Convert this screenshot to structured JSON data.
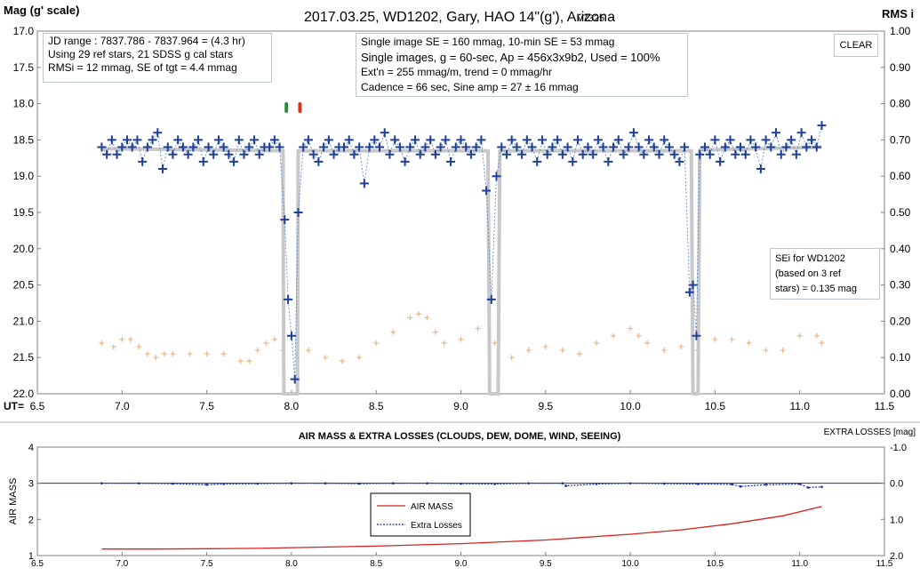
{
  "chart_data": [
    {
      "type": "scatter",
      "title": "2017.03.25, WD1202, Gary, HAO 14\"(g'), Arizona",
      "version": "v7325",
      "ylabel": "Mag (g' scale)",
      "y2label": "RMS i",
      "xlabel": "UT=",
      "xlim": [
        6.5,
        11.5
      ],
      "ylim": [
        17.0,
        22.0
      ],
      "y_inverted": true,
      "y2lim": [
        0.0,
        1.0
      ],
      "x_ticks": [
        "6.5",
        "7.0",
        "7.5",
        "8.0",
        "8.5",
        "9.0",
        "9.5",
        "10.0",
        "10.5",
        "11.0",
        "11.5"
      ],
      "y_ticks": [
        "17.0",
        "17.5",
        "18.0",
        "18.5",
        "19.0",
        "19.5",
        "20.0",
        "20.5",
        "21.0",
        "21.5",
        "22.0"
      ],
      "y2_ticks": [
        "1.00",
        "0.90",
        "0.80",
        "0.70",
        "0.60",
        "0.50",
        "0.40",
        "0.30",
        "0.20",
        "0.10",
        "0.00"
      ],
      "grid": false,
      "info_left": [
        "JD range : 7837.786 - 7837.964 = (4.3 hr)",
        "Using 29 ref stars, 21 SDSS g cal stars",
        "RMSi = 12 mmag, SE of tgt = 4.4 mmag"
      ],
      "info_center": [
        "Single image SE = 160 mmag, 10-min SE = 53 mmag",
        "Single images, g = 60-sec, Ap = 456x3x9b2, Used = 100%",
        "Ext'n = 255 mmag/m, trend = 0 mmag/hr",
        "Cadence = 66 sec, Sine amp = 27 ± 16 mmag"
      ],
      "sei_note": [
        "SEi for WD1202",
        "(based on 3 ref",
        "stars) = 0.135 mag"
      ],
      "clear_label": "CLEAR",
      "colors": {
        "target": "#1f3f99",
        "model": "#c8c8c8",
        "rms": "#e8b888",
        "marker_green": "#2e8b3a",
        "marker_red": "#d83020"
      },
      "markers_x": [
        7.97,
        8.05
      ],
      "series": [
        {
          "name": "",
          "kind": "target_mag",
          "x": [
            6.88,
            6.91,
            6.94,
            6.97,
            7.0,
            7.03,
            7.06,
            7.09,
            7.12,
            7.15,
            7.18,
            7.21,
            7.24,
            7.27,
            7.3,
            7.33,
            7.36,
            7.39,
            7.42,
            7.45,
            7.48,
            7.51,
            7.54,
            7.57,
            7.6,
            7.63,
            7.66,
            7.69,
            7.72,
            7.75,
            7.78,
            7.81,
            7.84,
            7.87,
            7.9,
            7.93,
            7.96,
            7.98,
            8.0,
            8.02,
            8.04,
            8.07,
            8.1,
            8.13,
            8.16,
            8.19,
            8.22,
            8.25,
            8.28,
            8.31,
            8.34,
            8.37,
            8.4,
            8.43,
            8.46,
            8.49,
            8.52,
            8.55,
            8.58,
            8.61,
            8.64,
            8.67,
            8.7,
            8.73,
            8.76,
            8.79,
            8.82,
            8.85,
            8.88,
            8.91,
            8.94,
            8.97,
            9.0,
            9.03,
            9.06,
            9.09,
            9.12,
            9.15,
            9.18,
            9.21,
            9.24,
            9.27,
            9.3,
            9.33,
            9.36,
            9.39,
            9.42,
            9.45,
            9.48,
            9.51,
            9.54,
            9.57,
            9.6,
            9.63,
            9.66,
            9.69,
            9.72,
            9.75,
            9.78,
            9.81,
            9.84,
            9.87,
            9.9,
            9.93,
            9.96,
            9.99,
            10.02,
            10.05,
            10.08,
            10.11,
            10.14,
            10.17,
            10.2,
            10.23,
            10.26,
            10.29,
            10.32,
            10.35,
            10.37,
            10.39,
            10.41,
            10.44,
            10.47,
            10.5,
            10.53,
            10.56,
            10.59,
            10.62,
            10.65,
            10.68,
            10.71,
            10.74,
            10.77,
            10.8,
            10.83,
            10.86,
            10.89,
            10.92,
            10.95,
            10.98,
            11.01,
            11.04,
            11.07,
            11.1,
            11.13
          ],
          "y": [
            18.6,
            18.7,
            18.5,
            18.7,
            18.6,
            18.5,
            18.6,
            18.5,
            18.8,
            18.6,
            18.5,
            18.4,
            18.9,
            18.6,
            18.7,
            18.5,
            18.6,
            18.7,
            18.6,
            18.5,
            18.8,
            18.6,
            18.7,
            18.5,
            18.6,
            18.7,
            18.8,
            18.5,
            18.7,
            18.6,
            18.5,
            18.7,
            18.6,
            18.6,
            18.5,
            18.6,
            19.6,
            20.7,
            21.2,
            21.8,
            19.5,
            18.6,
            18.5,
            18.7,
            18.8,
            18.6,
            18.5,
            18.7,
            18.6,
            18.6,
            18.5,
            18.7,
            18.6,
            19.1,
            18.6,
            18.5,
            18.6,
            18.4,
            18.7,
            18.5,
            18.6,
            18.8,
            18.6,
            18.5,
            18.7,
            18.6,
            18.5,
            18.7,
            18.6,
            18.5,
            18.8,
            18.6,
            18.5,
            18.6,
            18.7,
            18.6,
            18.5,
            19.2,
            20.7,
            19.0,
            18.6,
            18.7,
            18.5,
            18.6,
            18.7,
            18.5,
            18.6,
            18.8,
            18.5,
            18.7,
            18.6,
            18.5,
            18.7,
            18.6,
            18.8,
            18.5,
            18.7,
            18.6,
            18.7,
            18.5,
            18.6,
            18.8,
            18.6,
            18.5,
            18.7,
            18.6,
            18.4,
            18.6,
            18.7,
            18.5,
            18.6,
            18.7,
            18.5,
            18.6,
            18.7,
            18.8,
            18.6,
            20.6,
            20.5,
            21.2,
            18.7,
            18.6,
            18.7,
            18.5,
            18.8,
            18.6,
            18.5,
            18.7,
            18.6,
            18.7,
            18.5,
            18.6,
            18.9,
            18.5,
            18.6,
            18.4,
            18.7,
            18.6,
            18.5,
            18.7,
            18.4,
            18.6,
            18.5,
            18.6,
            18.3
          ]
        },
        {
          "name": "",
          "kind": "model",
          "x": [
            6.88,
            7.95,
            7.955,
            8.035,
            8.04,
            9.16,
            9.17,
            9.22,
            9.23,
            10.36,
            10.37,
            10.4,
            10.41,
            11.13
          ],
          "y": [
            18.62,
            18.65,
            22.0,
            22.0,
            18.65,
            18.65,
            22.0,
            22.0,
            18.65,
            18.65,
            22.0,
            22.0,
            18.64,
            18.6
          ]
        },
        {
          "name": "",
          "kind": "rms_i",
          "axis": "y2",
          "x": [
            6.88,
            6.95,
            7.0,
            7.05,
            7.1,
            7.15,
            7.2,
            7.25,
            7.3,
            7.4,
            7.5,
            7.6,
            7.7,
            7.75,
            7.8,
            7.85,
            7.9,
            7.95,
            8.1,
            8.2,
            8.3,
            8.4,
            8.5,
            8.6,
            8.7,
            8.75,
            8.8,
            8.85,
            8.9,
            9.0,
            9.1,
            9.2,
            9.3,
            9.4,
            9.5,
            9.6,
            9.7,
            9.8,
            9.9,
            10.0,
            10.05,
            10.1,
            10.2,
            10.3,
            10.4,
            10.5,
            10.6,
            10.7,
            10.8,
            10.9,
            11.0,
            11.1,
            11.13
          ],
          "y": [
            0.14,
            0.13,
            0.15,
            0.15,
            0.13,
            0.11,
            0.1,
            0.11,
            0.11,
            0.11,
            0.11,
            0.11,
            0.09,
            0.09,
            0.12,
            0.14,
            0.15,
            0.12,
            0.12,
            0.1,
            0.09,
            0.1,
            0.14,
            0.17,
            0.21,
            0.22,
            0.21,
            0.17,
            0.14,
            0.15,
            0.18,
            0.14,
            0.1,
            0.12,
            0.13,
            0.12,
            0.11,
            0.14,
            0.16,
            0.18,
            0.16,
            0.14,
            0.12,
            0.13,
            0.12,
            0.15,
            0.15,
            0.14,
            0.12,
            0.12,
            0.16,
            0.16,
            0.14
          ]
        }
      ]
    },
    {
      "type": "line",
      "title": "AIR MASS & EXTRA LOSSES (CLOUDS, DEW, DOME, WIND, SEEING)",
      "ylabel": "AIR MASS",
      "y2label": "EXTRA LOSSES [mag]",
      "xlim": [
        6.5,
        11.5
      ],
      "ylim": [
        1,
        4
      ],
      "y2lim": [
        -1.0,
        2.0
      ],
      "x_ticks": [
        "6.5",
        "7.0",
        "7.5",
        "8.0",
        "8.5",
        "9.0",
        "9.5",
        "10.0",
        "10.5",
        "11.0",
        "11.5"
      ],
      "y_ticks": [
        "4",
        "3",
        "2",
        "1"
      ],
      "y2_ticks": [
        "-1.0",
        "0.0",
        "1.0",
        "2.0"
      ],
      "legend_position": "center",
      "colors": {
        "air_mass": "#d82020",
        "extra_losses": "#1c2ca0"
      },
      "series": [
        {
          "name": "AIR MASS",
          "x": [
            6.88,
            7.2,
            7.5,
            7.8,
            8.0,
            8.5,
            9.0,
            9.5,
            10.0,
            10.3,
            10.6,
            10.9,
            11.13
          ],
          "y": [
            1.18,
            1.18,
            1.19,
            1.2,
            1.22,
            1.26,
            1.33,
            1.43,
            1.59,
            1.71,
            1.88,
            2.1,
            2.36
          ]
        },
        {
          "name": "Extra Losses",
          "x": [
            6.88,
            7.1,
            7.3,
            7.5,
            7.6,
            7.8,
            8.0,
            8.2,
            8.4,
            8.6,
            8.8,
            9.0,
            9.2,
            9.4,
            9.6,
            9.62,
            9.8,
            10.0,
            10.2,
            10.4,
            10.6,
            10.65,
            10.8,
            11.0,
            11.05,
            11.13
          ],
          "y": [
            0.0,
            0.0,
            0.01,
            0.04,
            0.02,
            0.01,
            0.0,
            0.0,
            0.01,
            0.0,
            0.0,
            0.01,
            0.02,
            0.0,
            0.0,
            0.07,
            0.02,
            0.0,
            0.01,
            0.02,
            0.03,
            0.09,
            0.04,
            0.02,
            0.12,
            0.1
          ]
        }
      ]
    }
  ]
}
